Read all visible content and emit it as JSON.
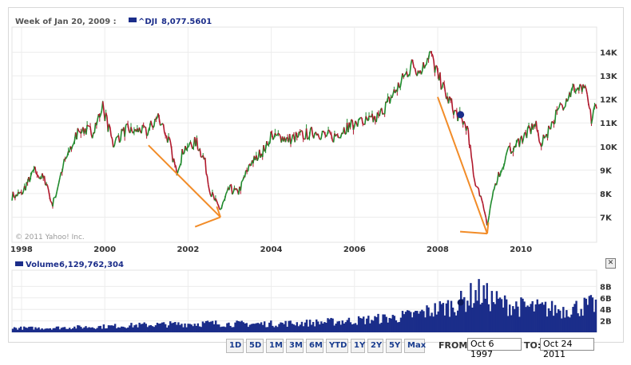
{
  "header": {
    "week": "Week of Jan 20, 2009 :",
    "symbol": "^DJI",
    "value": "8,077.5601"
  },
  "volume_header": {
    "label": "Volume",
    "value": "6,129,762,304"
  },
  "copyright": "© 2011 Yahoo! Inc.",
  "ranges": [
    "1D",
    "5D",
    "1M",
    "3M",
    "6M",
    "YTD",
    "1Y",
    "2Y",
    "5Y",
    "Max"
  ],
  "from_label": "FROM:",
  "from_value": "Oct 6 1997",
  "to_label": "TO:",
  "to_value": "Oct 24 2011",
  "close_icon": "close-icon",
  "colors": {
    "up": "#1f8a2c",
    "down": "#b0182c",
    "volume": "#1b2d8a",
    "annotation": "#f28c28",
    "series_marker": "#1b2d8a"
  },
  "chart_data": [
    {
      "type": "line",
      "series": [
        {
          "name": "^DJI",
          "x": [
            1997.77,
            1998.0,
            1998.3,
            1998.6,
            1998.75,
            1999.0,
            1999.4,
            1999.7,
            1999.95,
            2000.2,
            2000.5,
            2000.8,
            2001.0,
            2001.3,
            2001.55,
            2001.72,
            2001.9,
            2002.2,
            2002.4,
            2002.55,
            2002.78,
            2003.0,
            2003.2,
            2003.5,
            2003.8,
            2004.0,
            2004.4,
            2004.8,
            2005.0,
            2005.5,
            2005.8,
            2006.0,
            2006.4,
            2006.6,
            2007.0,
            2007.4,
            2007.6,
            2007.8,
            2007.95,
            2008.2,
            2008.45,
            2008.7,
            2008.9,
            2009.1,
            2009.19,
            2009.4,
            2009.7,
            2010.0,
            2010.35,
            2010.5,
            2010.8,
            2011.0,
            2011.3,
            2011.55,
            2011.7,
            2011.82
          ],
          "y": [
            7900,
            8000,
            9000,
            8500,
            7500,
            9200,
            10800,
            10600,
            11700,
            10100,
            10700,
            10700,
            10600,
            11300,
            10200,
            8900,
            9900,
            10200,
            9400,
            8000,
            7300,
            8200,
            8000,
            9300,
            9800,
            10500,
            10300,
            10500,
            10600,
            10400,
            10800,
            11000,
            11100,
            11300,
            12400,
            13500,
            13100,
            14000,
            13300,
            12200,
            11400,
            10900,
            8400,
            7600,
            6600,
            8500,
            9800,
            10300,
            10900,
            10100,
            11200,
            11800,
            12500,
            12300,
            11100,
            11900
          ]
        }
      ],
      "y_ticks": [
        "7K",
        "8K",
        "9K",
        "10K",
        "11K",
        "12K",
        "13K",
        "14K"
      ],
      "x_ticks": [
        "1998",
        "2000",
        "2002",
        "2004",
        "2006",
        "2008",
        "2010"
      ],
      "ylim": [
        6000,
        15000
      ],
      "xlim": [
        1997.77,
        2011.82
      ],
      "annotations": [
        {
          "type": "arrow",
          "from": [
            2001.05,
            10050
          ],
          "to": [
            2002.78,
            7000
          ]
        },
        {
          "type": "arrow",
          "from": [
            2008.0,
            12100
          ],
          "to": [
            2009.19,
            6300
          ]
        }
      ],
      "marker": {
        "x": 2008.55,
        "y": 11350
      },
      "grid": true
    },
    {
      "type": "area",
      "series": [
        {
          "name": "Volume",
          "x": [
            1997.77,
            1998.5,
            1999.0,
            2000.0,
            2001.0,
            2002.0,
            2002.5,
            2003.0,
            2004.0,
            2005.0,
            2006.0,
            2007.0,
            2007.5,
            2008.0,
            2008.5,
            2008.8,
            2009.0,
            2009.3,
            2009.6,
            2010.0,
            2010.5,
            2011.0,
            2011.5,
            2011.82
          ],
          "values": [
            0.8,
            0.8,
            0.9,
            1.1,
            1.4,
            1.6,
            1.7,
            1.6,
            1.6,
            1.8,
            2.2,
            2.8,
            3.4,
            4.4,
            5.3,
            6.8,
            7.4,
            6.2,
            5.3,
            4.8,
            4.5,
            4.2,
            4.9,
            5.2
          ]
        }
      ],
      "y_ticks": [
        "2B",
        "4B",
        "6B",
        "8B"
      ],
      "ylim": [
        0,
        10
      ],
      "marker": {
        "x": 2008.55,
        "y": 5.2
      }
    }
  ]
}
